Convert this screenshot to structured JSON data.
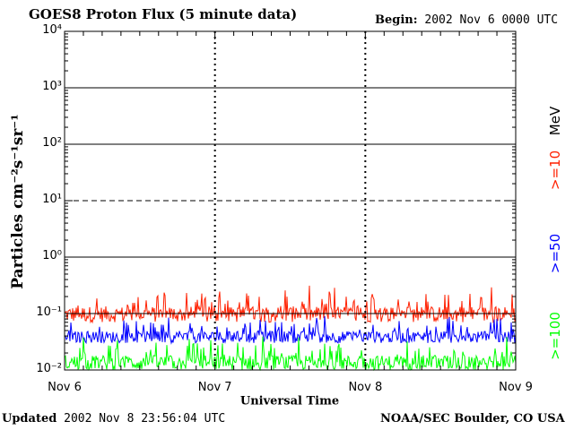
{
  "header": {
    "title": "GOES8 Proton Flux (5 minute data)",
    "begin_label": "Begin:",
    "begin_value": "2002 Nov 6 0000 UTC"
  },
  "footer": {
    "updated_label": "Updated",
    "updated_value": "2002 Nov  8 23:56:04 UTC",
    "credit": "NOAA/SEC Boulder, CO USA"
  },
  "chart_data": {
    "type": "line",
    "title": "GOES8 Proton Flux (5 minute data)",
    "xlabel": "Universal Time",
    "ylabel": "Particles cm⁻²s⁻¹sr⁻¹",
    "y_scale": "log",
    "ylim": [
      0.01,
      10000
    ],
    "y_tick_labels": [
      "10⁻²",
      "10⁻¹",
      "10⁰",
      "10¹",
      "10²",
      "10³",
      "10⁴"
    ],
    "y_tick_values": [
      0.01,
      0.1,
      1,
      10,
      100,
      1000,
      10000
    ],
    "x_tick_labels": [
      "Nov 6",
      "Nov 7",
      "Nov 8",
      "Nov 9"
    ],
    "x_tick_days": [
      0,
      1,
      2,
      3
    ],
    "xlim_days": [
      0,
      3
    ],
    "unit_label": "MeV",
    "grid": true,
    "series": [
      {
        "name": ">=10",
        "color": "#ff2000",
        "level_min": 0.07,
        "level_max": 0.45
      },
      {
        "name": ">=50",
        "color": "#0000ff",
        "level_min": 0.03,
        "level_max": 0.12
      },
      {
        "name": ">=100",
        "color": "#00ff00",
        "level_min": 0.01,
        "level_max": 0.055
      }
    ]
  }
}
